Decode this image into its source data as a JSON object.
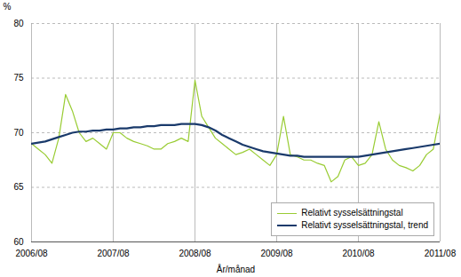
{
  "chart_data": {
    "type": "line",
    "xlabel": "År/månad",
    "ylabel": "%",
    "categories": [
      "2006/08",
      null,
      null,
      null,
      null,
      null,
      null,
      null,
      null,
      null,
      null,
      null,
      "2007/08",
      null,
      null,
      null,
      null,
      null,
      null,
      null,
      null,
      null,
      null,
      null,
      "2008/08",
      null,
      null,
      null,
      null,
      null,
      null,
      null,
      null,
      null,
      null,
      null,
      "2009/08",
      null,
      null,
      null,
      null,
      null,
      null,
      null,
      null,
      null,
      null,
      null,
      "2010/08",
      null,
      null,
      null,
      null,
      null,
      null,
      null,
      null,
      null,
      null,
      null,
      "2011/08"
    ],
    "series": [
      {
        "name": "Relativt sysselsättningstal",
        "color": "#99cc33",
        "values": [
          69.0,
          68.5,
          68.0,
          67.2,
          69.5,
          73.5,
          72.0,
          70.0,
          69.2,
          69.5,
          69.0,
          68.5,
          70.0,
          70.0,
          69.5,
          69.2,
          69.0,
          68.8,
          68.5,
          68.5,
          69.0,
          69.2,
          69.5,
          69.2,
          74.8,
          71.5,
          70.5,
          69.5,
          69.0,
          68.5,
          68.0,
          68.2,
          68.5,
          68.0,
          67.5,
          67.0,
          68.0,
          71.5,
          68.0,
          67.8,
          67.5,
          67.5,
          67.2,
          67.0,
          65.5,
          66.0,
          67.5,
          67.8,
          67.0,
          67.2,
          68.0,
          71.0,
          68.5,
          67.5,
          67.0,
          66.8,
          66.5,
          67.0,
          68.0,
          68.5,
          71.8
        ]
      },
      {
        "name": "Relativt sysselsättningstal, trend",
        "color": "#1a3a6b",
        "values": [
          69.0,
          69.1,
          69.2,
          69.4,
          69.6,
          69.8,
          70.0,
          70.1,
          70.1,
          70.2,
          70.2,
          70.3,
          70.3,
          70.4,
          70.4,
          70.5,
          70.5,
          70.6,
          70.6,
          70.7,
          70.7,
          70.7,
          70.8,
          70.8,
          70.8,
          70.7,
          70.5,
          70.2,
          69.8,
          69.5,
          69.2,
          68.9,
          68.7,
          68.5,
          68.3,
          68.2,
          68.1,
          68.0,
          67.9,
          67.9,
          67.8,
          67.8,
          67.8,
          67.8,
          67.8,
          67.8,
          67.8,
          67.8,
          67.8,
          67.9,
          68.0,
          68.1,
          68.2,
          68.3,
          68.4,
          68.5,
          68.6,
          68.7,
          68.8,
          68.9,
          69.0
        ]
      }
    ],
    "ylim": [
      60,
      80
    ],
    "yticks": [
      60,
      65,
      70,
      75,
      80
    ],
    "grid": true,
    "legend": "lower right"
  }
}
